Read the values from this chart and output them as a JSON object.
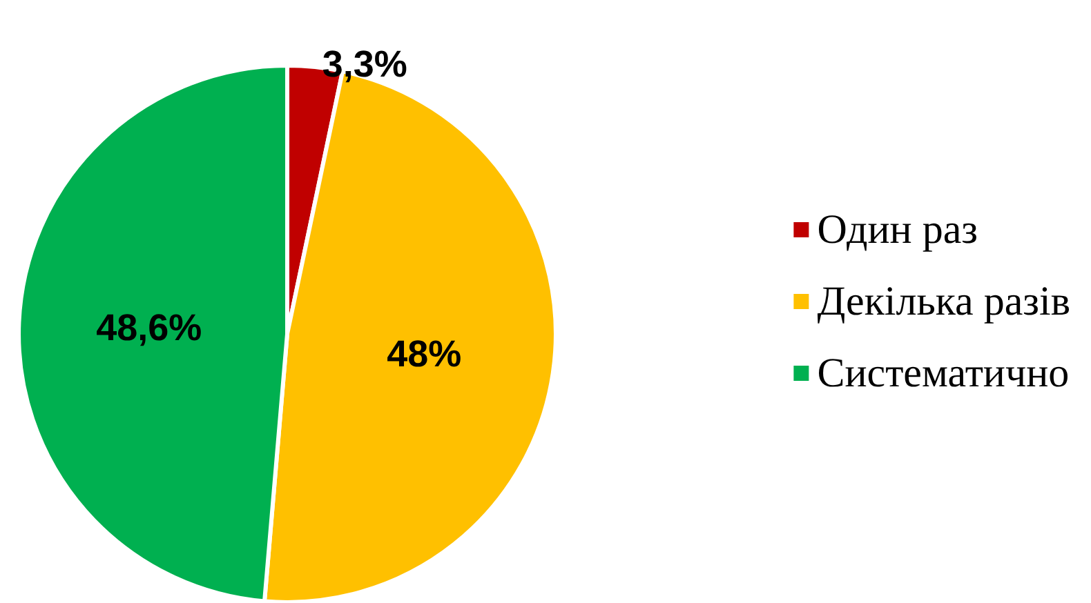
{
  "chart_data": {
    "type": "pie",
    "categories": [
      "Один раз",
      "Декілька разів",
      "Систематично"
    ],
    "values": [
      3.3,
      48,
      48.6
    ],
    "colors": [
      "#c00000",
      "#ffc000",
      "#00b050"
    ],
    "value_labels": [
      "3,3%",
      "48%",
      "48,6%"
    ],
    "legend": "right"
  }
}
